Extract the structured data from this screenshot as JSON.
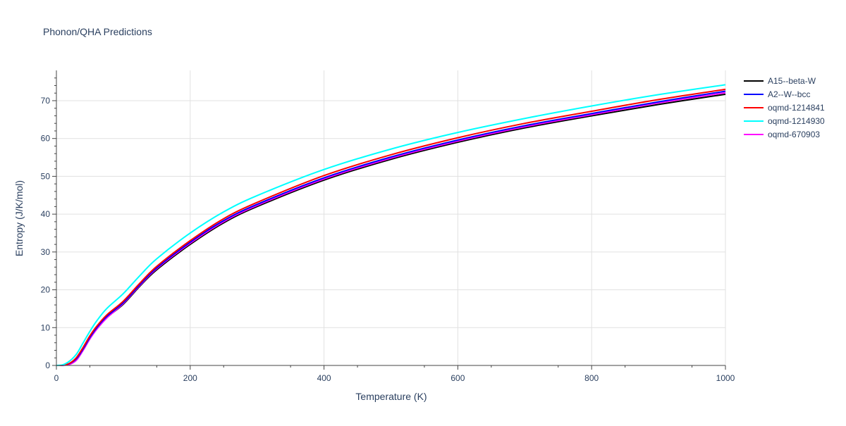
{
  "chart_data": {
    "type": "line",
    "title": "Phonon/QHA Predictions",
    "xlabel": "Temperature (K)",
    "ylabel": "Entropy (J/K/mol)",
    "xlim": [
      0,
      1000
    ],
    "ylim": [
      0,
      78
    ],
    "xticks": [
      0,
      200,
      400,
      600,
      800,
      1000
    ],
    "yticks": [
      0,
      10,
      20,
      30,
      40,
      50,
      60,
      70
    ],
    "grid": true,
    "legend_position": "top-right",
    "x": [
      0,
      10,
      20,
      30,
      40,
      50,
      60,
      75,
      100,
      125,
      150,
      200,
      250,
      300,
      400,
      500,
      600,
      700,
      800,
      900,
      1000
    ],
    "series": [
      {
        "name": "A15--beta-W",
        "color": "#000000",
        "values": [
          0,
          0.05,
          0.5,
          1.7,
          4.3,
          7.2,
          9.6,
          12.6,
          16.2,
          21.0,
          25.3,
          32.0,
          37.7,
          42.0,
          49.0,
          54.5,
          59.0,
          62.8,
          66.0,
          69.0,
          71.7
        ]
      },
      {
        "name": "A2--W--bcc",
        "color": "#0000ff",
        "values": [
          0,
          0.05,
          0.55,
          1.8,
          4.4,
          7.4,
          9.9,
          12.9,
          16.6,
          21.4,
          25.8,
          32.6,
          38.3,
          42.6,
          49.6,
          55.1,
          59.6,
          63.4,
          66.6,
          69.7,
          72.5
        ]
      },
      {
        "name": "oqmd-1214841",
        "color": "#ff0000",
        "values": [
          0,
          0.06,
          0.6,
          2.1,
          4.8,
          7.8,
          10.3,
          13.3,
          17.0,
          21.8,
          26.2,
          33.0,
          38.8,
          43.1,
          50.2,
          55.7,
          60.2,
          64.0,
          67.2,
          70.3,
          73.0
        ]
      },
      {
        "name": "oqmd-1214930",
        "color": "#00ffff",
        "values": [
          0,
          0.2,
          1.2,
          3.0,
          6.0,
          9.0,
          11.7,
          15.0,
          19.0,
          23.8,
          28.2,
          35.0,
          40.6,
          44.9,
          51.8,
          57.2,
          61.6,
          65.3,
          68.6,
          71.6,
          74.2
        ]
      },
      {
        "name": "oqmd-670903",
        "color": "#ff00ff",
        "values": [
          0,
          0.03,
          0.3,
          1.4,
          4.0,
          7.0,
          9.5,
          12.5,
          16.4,
          21.2,
          25.6,
          32.3,
          38.0,
          42.3,
          49.3,
          54.8,
          59.3,
          63.1,
          66.3,
          69.4,
          72.1
        ]
      }
    ]
  }
}
